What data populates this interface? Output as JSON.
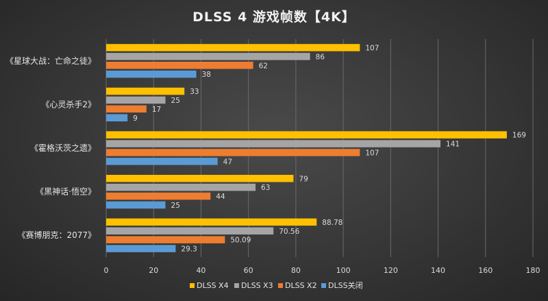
{
  "chart_data": {
    "type": "bar",
    "orientation": "horizontal",
    "title": "DLSS 4 游戏帧数【4K】",
    "categories": [
      "《星球大战：亡命之徒》",
      "《心灵杀手2》",
      "《霍格沃茨之遗》",
      "《黑神话·悟空》",
      "《赛博朋克：2077》"
    ],
    "series": [
      {
        "name": "DLSS X4",
        "color": "#FFC000",
        "values": [
          107,
          33,
          169,
          79,
          88.78
        ],
        "labels": [
          "107",
          "33",
          "169",
          "79",
          "88.78"
        ]
      },
      {
        "name": "DLSS X3",
        "color": "#A5A5A5",
        "values": [
          86,
          25,
          141,
          63,
          70.56
        ],
        "labels": [
          "86",
          "25",
          "141",
          "63",
          "70.56"
        ]
      },
      {
        "name": "DLSS X2",
        "color": "#ED7D31",
        "values": [
          62,
          17,
          107,
          44,
          50.09
        ],
        "labels": [
          "62",
          "17",
          "107",
          "44",
          "50.09"
        ]
      },
      {
        "name": "DLSS关闭",
        "color": "#5B9BD5",
        "values": [
          38,
          9,
          47,
          25,
          29.3
        ],
        "labels": [
          "38",
          "9",
          "47",
          "25",
          "29.3"
        ]
      }
    ],
    "xlim": [
      0,
      180
    ],
    "xticks": [
      "0",
      "20",
      "40",
      "60",
      "80",
      "100",
      "120",
      "140",
      "160",
      "180"
    ],
    "xlabel": "",
    "ylabel": "",
    "grid": "vertical",
    "legend": "bottom"
  }
}
